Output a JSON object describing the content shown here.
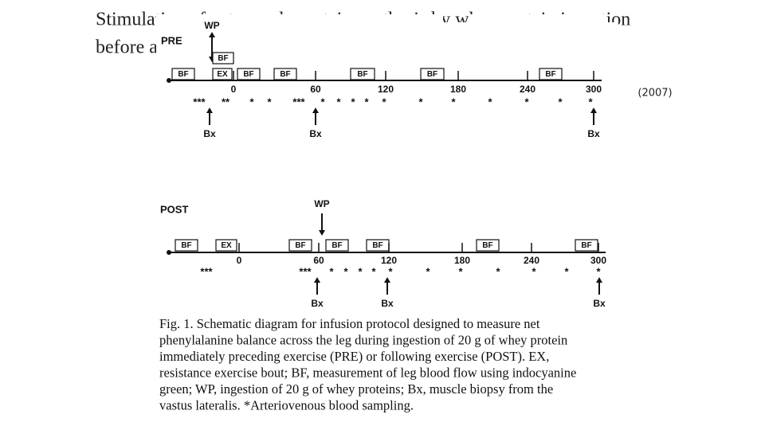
{
  "title": {
    "lines": [
      "Stimulation of net muscle protein synthesis by whey protein ingestion",
      "before and after exercise"
    ]
  },
  "year": "(2007)",
  "diagram": {
    "pre": {
      "label": "PRE",
      "intervention": "WP",
      "boxes": [
        "BF",
        "BF",
        "EX",
        "BF",
        "BF",
        "BF",
        "BF",
        "BF"
      ],
      "ticks": [
        "0",
        "60",
        "120",
        "180",
        "240",
        "300"
      ],
      "samples": [
        "***",
        "**",
        "*",
        "*",
        "***",
        "*",
        "*",
        "*",
        "*",
        "*",
        "*",
        "*",
        "*",
        "*",
        "*",
        "*"
      ],
      "biopsies": [
        "Bx",
        "Bx",
        "Bx"
      ]
    },
    "post": {
      "label": "POST",
      "intervention": "WP",
      "boxes": [
        "BF",
        "EX",
        "BF",
        "BF",
        "BF",
        "BF",
        "BF"
      ],
      "ticks": [
        "0",
        "60",
        "120",
        "180",
        "240",
        "300"
      ],
      "samples": [
        "***",
        "***",
        "*",
        "*",
        "*",
        "*",
        "*",
        "*",
        "*",
        "*",
        "*",
        "*",
        "*"
      ],
      "biopsies": [
        "Bx",
        "Bx",
        "Bx"
      ]
    }
  },
  "caption": {
    "lines": [
      "Fig. 1. Schematic diagram for infusion protocol designed to measure net",
      "phenylalanine balance across the leg during ingestion of 20 g of whey protein",
      "immediately preceding exercise (PRE) or following exercise (POST). EX,",
      "resistance exercise bout; BF, measurement of leg blood flow using indocyanine",
      "green; WP, ingestion of 20 g of whey proteins; Bx, muscle biopsy from the",
      "vastus lateralis. *Arteriovenous blood sampling."
    ]
  }
}
